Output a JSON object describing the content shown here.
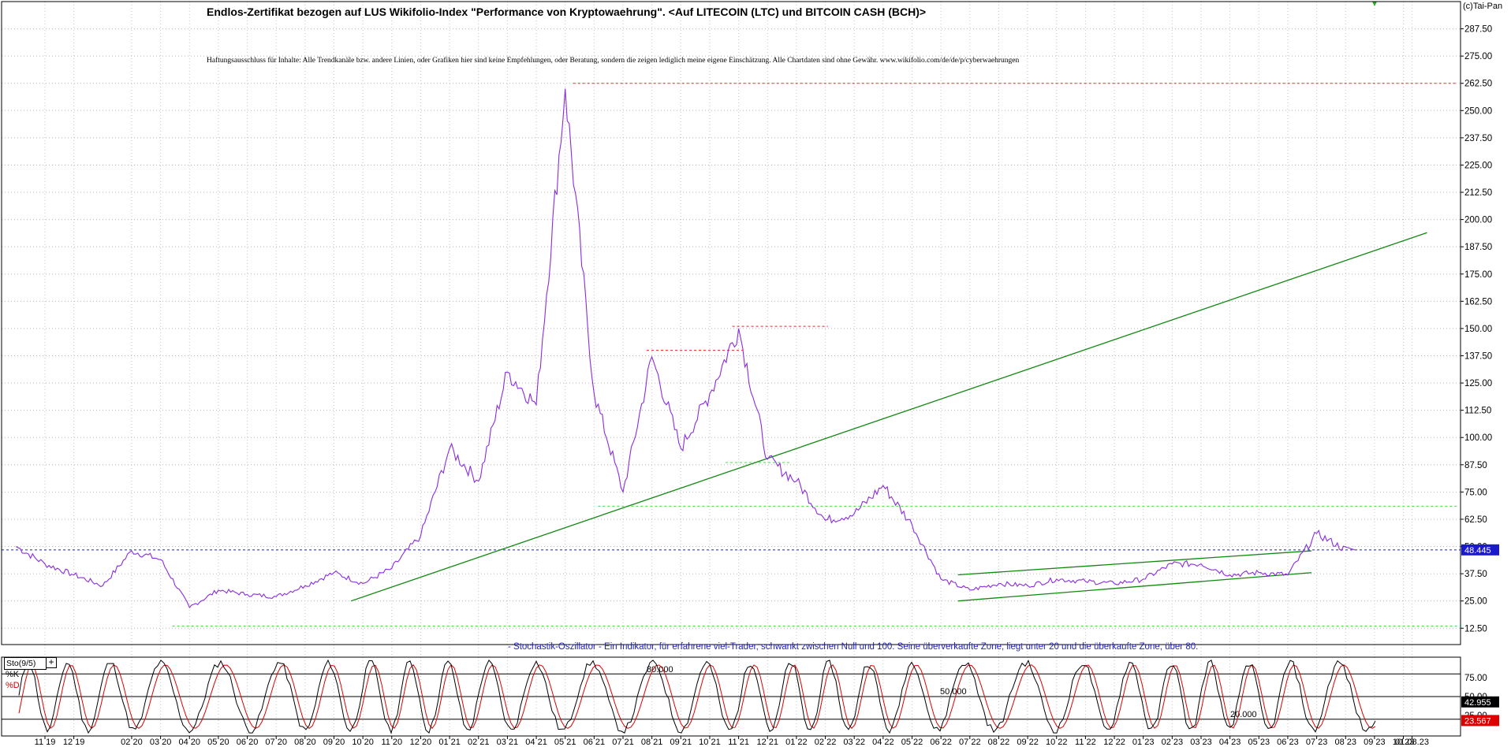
{
  "header": {
    "title": "Endlos-Zertifikat bezogen auf LUS Wikifolio-Index \"Performance von Kryptowaehrung\". <Auf LITECOIN (LTC) und BITCOIN CASH (BCH)>",
    "disclaimer": "Haftungsausschluss für Inhalte: Alle Trendkanäle bzw. andere Linien, oder Grafiken hier sind keine Empfehlungen, oder Beratung, sondern die zeigen lediglich meine eigene Einschätzung. Alle Chartdaten sind ohne Gewähr.  www.wikifolio.com/de/de/p/cyberwaehrungen",
    "copyright": "(c)Tai-Pan"
  },
  "colors": {
    "price_line": "#8a2be2",
    "trend_line": "#118811",
    "support_dashed": "#44dd44",
    "resistance_dashed": "#ee2222",
    "last_price_dashed": "#2222bb",
    "stoch_k": "#000000",
    "stoch_d": "#dd0000",
    "price_tag_bg": "#1a1acc",
    "stoch_k_tag_bg": "#000000",
    "stoch_d_tag_bg": "#dd0000"
  },
  "oscillator": {
    "description": "- Stochastik-Oszillator - Ein Indikator, für erfahrene viel-Trader, schwankt zwischen Null und 100. Seine überverkaufte Zone, liegt unter 20 und die überkaufte Zone, über 80.",
    "name": "Sto(9/5)",
    "plus": "+",
    "k_label": "%K",
    "d_label": "%D",
    "level_80": "80.000",
    "level_50": "50.000",
    "level_20": "20.000",
    "k_value": "42.955",
    "d_value": "23.567",
    "axis_labels": [
      "75.00",
      "50.00",
      "25.00"
    ]
  },
  "chart_data": [
    {
      "type": "line",
      "name": "price",
      "y_ticks": [
        "12.50",
        "25.00",
        "37.50",
        "50.00",
        "62.50",
        "75.00",
        "87.50",
        "100.00",
        "112.50",
        "125.00",
        "137.50",
        "150.00",
        "162.50",
        "175.00",
        "187.50",
        "200.00",
        "212.50",
        "225.00",
        "237.50",
        "250.00",
        "262.50",
        "275.00",
        "287.50"
      ],
      "ylim": [
        5,
        300
      ],
      "x_ticks": [
        "11|19",
        "12|19",
        "02|20",
        "03|20",
        "04|20",
        "05|20",
        "06|20",
        "07|20",
        "08|20",
        "09|20",
        "10|20",
        "11|20",
        "12|20",
        "01|21",
        "02|21",
        "03|21",
        "04|21",
        "05|21",
        "06|21",
        "07|21",
        "08|21",
        "09|21",
        "10|21",
        "11|21",
        "12|21",
        "01|22",
        "02|22",
        "03|22",
        "04|22",
        "05|22",
        "06|22",
        "07|22",
        "08|22",
        "09|22",
        "10|22",
        "11|22",
        "12|22",
        "01|23",
        "02|23",
        "03|23",
        "04|23",
        "05|23",
        "06|23",
        "07|23",
        "08|23",
        "09|23",
        "10|23",
        "01.08.23"
      ],
      "last_price": "48.445",
      "series": [
        {
          "x": [
            "10|19",
            "11|19",
            "12|19",
            "01|20",
            "02|20",
            "03|20",
            "04|20",
            "05|20",
            "06|20",
            "07|20",
            "08|20",
            "09|20",
            "10|20",
            "11|20",
            "12|20",
            "01|21",
            "02|21",
            "03|21",
            "04|21",
            "05|21",
            "06|21",
            "07|21",
            "08|21",
            "09|21",
            "10|21",
            "11|21",
            "12|21",
            "01|22",
            "02|22",
            "03|22",
            "04|22",
            "05|22",
            "06|22",
            "07|22",
            "08|22",
            "09|22",
            "10|22",
            "11|22",
            "12|22",
            "01|23",
            "02|23",
            "03|23",
            "04|23",
            "05|23",
            "06|23",
            "07|23",
            "08|23"
          ],
          "values": [
            50,
            42,
            37,
            32,
            48,
            44,
            22,
            30,
            28,
            27,
            32,
            38,
            33,
            40,
            55,
            95,
            80,
            130,
            115,
            260,
            120,
            75,
            137,
            95,
            120,
            150,
            90,
            80,
            62,
            65,
            78,
            60,
            35,
            30,
            33,
            32,
            35,
            34,
            33,
            35,
            42,
            42,
            37,
            38,
            37,
            56,
            48.4
          ]
        }
      ],
      "levels": {
        "resistance": [
          262.5,
          140,
          151
        ],
        "support": [
          13.5,
          88.5,
          68.5
        ],
        "last": 48.445
      },
      "trend_lines": [
        {
          "from": [
            "10|20",
            25
          ],
          "to": [
            "10|23",
            194
          ]
        },
        {
          "from": [
            "07|22",
            37
          ],
          "to": [
            "06|23",
            48
          ]
        },
        {
          "from": [
            "07|22",
            25
          ],
          "to": [
            "06|23",
            38
          ]
        }
      ]
    },
    {
      "type": "line",
      "name": "Sto(9/5)",
      "ylim": [
        0,
        100
      ],
      "levels": [
        80,
        50,
        20
      ],
      "series": [
        {
          "name": "%K",
          "last": 42.955
        },
        {
          "name": "%D",
          "last": 23.567
        }
      ]
    }
  ]
}
